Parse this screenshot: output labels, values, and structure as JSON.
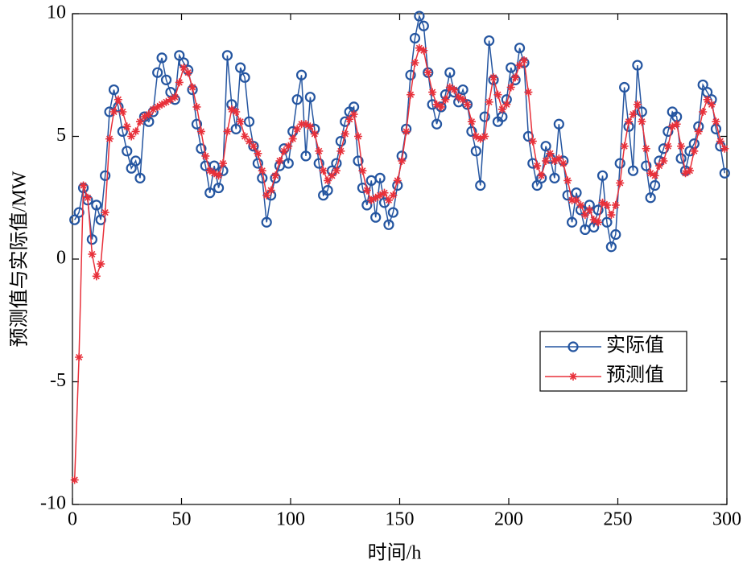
{
  "chart_data": {
    "type": "line",
    "xlabel": "时间/h",
    "ylabel": "预测值与实际值/MW",
    "xlim": [
      0,
      300
    ],
    "xticks": [
      0,
      50,
      100,
      150,
      200,
      250,
      300
    ],
    "ylim": [
      -10,
      10
    ],
    "yticks": [
      -10,
      -5,
      0,
      5,
      10
    ],
    "legend": "right",
    "x": [
      1,
      3,
      5,
      7,
      9,
      11,
      13,
      15,
      17,
      19,
      21,
      23,
      25,
      27,
      29,
      31,
      33,
      35,
      37,
      39,
      41,
      43,
      45,
      47,
      49,
      51,
      53,
      55,
      57,
      59,
      61,
      63,
      65,
      67,
      69,
      71,
      73,
      75,
      77,
      79,
      81,
      83,
      85,
      87,
      89,
      91,
      93,
      95,
      97,
      99,
      101,
      103,
      105,
      107,
      109,
      111,
      113,
      115,
      117,
      119,
      121,
      123,
      125,
      127,
      129,
      131,
      133,
      135,
      137,
      139,
      141,
      143,
      145,
      147,
      149,
      151,
      153,
      155,
      157,
      159,
      161,
      163,
      165,
      167,
      169,
      171,
      173,
      175,
      177,
      179,
      181,
      183,
      185,
      187,
      189,
      191,
      193,
      195,
      197,
      199,
      201,
      203,
      205,
      207,
      209,
      211,
      213,
      215,
      217,
      219,
      221,
      223,
      225,
      227,
      229,
      231,
      233,
      235,
      237,
      239,
      241,
      243,
      245,
      247,
      249,
      251,
      253,
      255,
      257,
      259,
      261,
      263,
      265,
      267,
      269,
      271,
      273,
      275,
      277,
      279,
      281,
      283,
      285,
      287,
      289,
      291,
      293,
      295,
      297,
      299
    ],
    "series": [
      {
        "name": "实际值",
        "color": "#2455a0",
        "marker": "circle",
        "values": [
          1.6,
          1.9,
          2.9,
          2.4,
          0.8,
          2.2,
          1.6,
          3.4,
          6.0,
          6.9,
          6.2,
          5.2,
          4.4,
          3.7,
          4.0,
          3.3,
          5.8,
          5.6,
          6.0,
          7.6,
          8.2,
          7.3,
          6.8,
          6.5,
          8.3,
          8.0,
          7.7,
          6.9,
          5.5,
          4.5,
          3.8,
          2.7,
          3.8,
          2.9,
          3.6,
          8.3,
          6.3,
          5.3,
          7.8,
          7.4,
          5.6,
          4.6,
          3.9,
          3.3,
          1.5,
          2.6,
          3.3,
          3.8,
          4.5,
          3.9,
          5.2,
          6.5,
          7.5,
          4.2,
          6.6,
          5.3,
          3.9,
          2.6,
          2.8,
          3.6,
          3.9,
          4.8,
          5.6,
          6.0,
          6.2,
          4.0,
          2.9,
          2.2,
          3.2,
          1.7,
          3.3,
          2.3,
          1.4,
          1.9,
          3.0,
          4.2,
          5.3,
          7.5,
          9.0,
          9.9,
          9.5,
          7.6,
          6.3,
          5.5,
          6.2,
          6.7,
          7.6,
          6.8,
          6.4,
          6.9,
          6.3,
          5.2,
          4.4,
          3.0,
          5.8,
          8.9,
          7.3,
          5.6,
          5.8,
          6.5,
          7.8,
          7.3,
          8.6,
          8.0,
          5.0,
          3.9,
          3.0,
          3.3,
          4.6,
          4.1,
          3.3,
          5.5,
          4.0,
          2.6,
          1.5,
          2.7,
          2.0,
          1.2,
          2.2,
          1.3,
          2.0,
          3.4,
          1.5,
          0.5,
          1.0,
          3.9,
          7.0,
          5.4,
          3.6,
          7.9,
          6.0,
          3.8,
          2.5,
          3.0,
          4.0,
          4.5,
          5.2,
          6.0,
          5.8,
          4.1,
          3.6,
          4.4,
          4.7,
          5.4,
          7.1,
          6.8,
          6.5,
          5.3,
          4.6,
          3.5
        ]
      },
      {
        "name": "预测值",
        "color": "#e8303a",
        "marker": "asterisk",
        "values": [
          -9,
          -4,
          3.0,
          2.5,
          0.2,
          -0.7,
          -0.2,
          1.9,
          4.9,
          6.0,
          6.5,
          6.0,
          5.4,
          5.0,
          5.2,
          5.6,
          5.8,
          5.9,
          6.1,
          6.2,
          6.3,
          6.4,
          6.5,
          6.6,
          7.2,
          7.8,
          7.6,
          7.0,
          6.2,
          5.2,
          4.2,
          3.6,
          3.5,
          3.4,
          3.9,
          5.2,
          6.1,
          6.0,
          5.6,
          5.0,
          4.8,
          4.6,
          4.3,
          3.6,
          2.6,
          2.8,
          3.4,
          4.0,
          4.4,
          4.6,
          4.9,
          5.3,
          5.5,
          5.5,
          5.4,
          5.1,
          4.4,
          3.6,
          3.2,
          3.4,
          3.6,
          4.4,
          5.1,
          5.7,
          5.9,
          5.0,
          3.6,
          2.8,
          2.4,
          2.5,
          2.6,
          2.7,
          2.4,
          2.6,
          3.2,
          4.0,
          5.2,
          6.7,
          8.0,
          8.6,
          8.5,
          7.6,
          6.8,
          6.3,
          6.2,
          6.5,
          7.0,
          6.9,
          6.6,
          6.5,
          6.3,
          5.6,
          5.0,
          4.9,
          5.0,
          6.4,
          7.4,
          6.7,
          6.1,
          6.3,
          7.0,
          7.4,
          7.9,
          8.1,
          6.8,
          4.8,
          3.8,
          3.4,
          4.0,
          4.3,
          4.0,
          4.1,
          3.9,
          3.2,
          2.4,
          2.4,
          2.2,
          1.8,
          2.0,
          1.6,
          1.5,
          2.3,
          2.2,
          1.8,
          2.2,
          3.1,
          4.6,
          5.6,
          5.9,
          6.3,
          5.6,
          4.5,
          3.5,
          3.4,
          3.8,
          4.0,
          4.6,
          5.4,
          5.5,
          4.6,
          3.5,
          3.6,
          4.4,
          5.2,
          6.0,
          6.5,
          6.3,
          5.6,
          4.8,
          4.5
        ]
      }
    ]
  }
}
